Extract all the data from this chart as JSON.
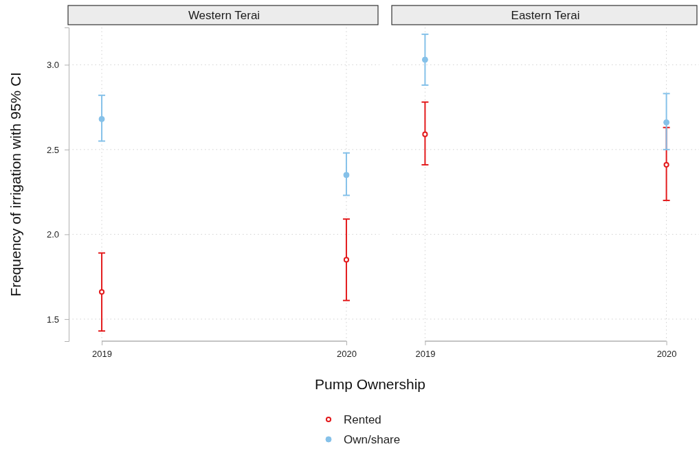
{
  "chart_data": [
    {
      "type": "scatter",
      "title": "Western Terai",
      "xlabel": "Pump Ownership",
      "ylabel": "Frequency of irrigation with 95% CI",
      "categories": [
        "2019",
        "2020"
      ],
      "ylim": [
        1.37,
        3.22
      ],
      "yticks": [
        {
          "value": 1.5,
          "label": "1.5"
        },
        {
          "value": 2,
          "label": "2.0"
        },
        2.5,
        {
          "value": 3,
          "label": "3.0"
        }
      ],
      "grid": true,
      "legend": "bottom",
      "marker": "circle",
      "series": [
        {
          "name": "Rented",
          "color": "#e31a1c",
          "values": [
            1.66,
            1.85
          ],
          "errors": [
            [
              1.43,
              1.89
            ],
            [
              1.61,
              2.09
            ]
          ]
        },
        {
          "name": "Own/share",
          "color": "#85c1e9",
          "values": [
            2.68,
            2.35
          ],
          "errors": [
            [
              2.55,
              2.82
            ],
            [
              2.23,
              2.48
            ]
          ]
        }
      ]
    },
    {
      "type": "scatter",
      "title": "Eastern Terai",
      "categories": [
        "2019",
        "2020"
      ],
      "ylim": [
        1.37,
        3.22
      ],
      "yticks": [
        1.5,
        2,
        2.5,
        3
      ],
      "grid": true,
      "tick_labels": "x",
      "marker": "circle",
      "series": [
        {
          "color": "#e31a1c",
          "values": [
            2.59,
            2.41
          ],
          "errors": [
            [
              2.41,
              2.78
            ],
            [
              2.2,
              2.63
            ]
          ]
        },
        {
          "color": "#85c1e9",
          "values": [
            3.03,
            2.66
          ],
          "errors": [
            [
              2.88,
              3.18
            ],
            [
              2.5,
              2.83
            ]
          ]
        }
      ]
    }
  ]
}
